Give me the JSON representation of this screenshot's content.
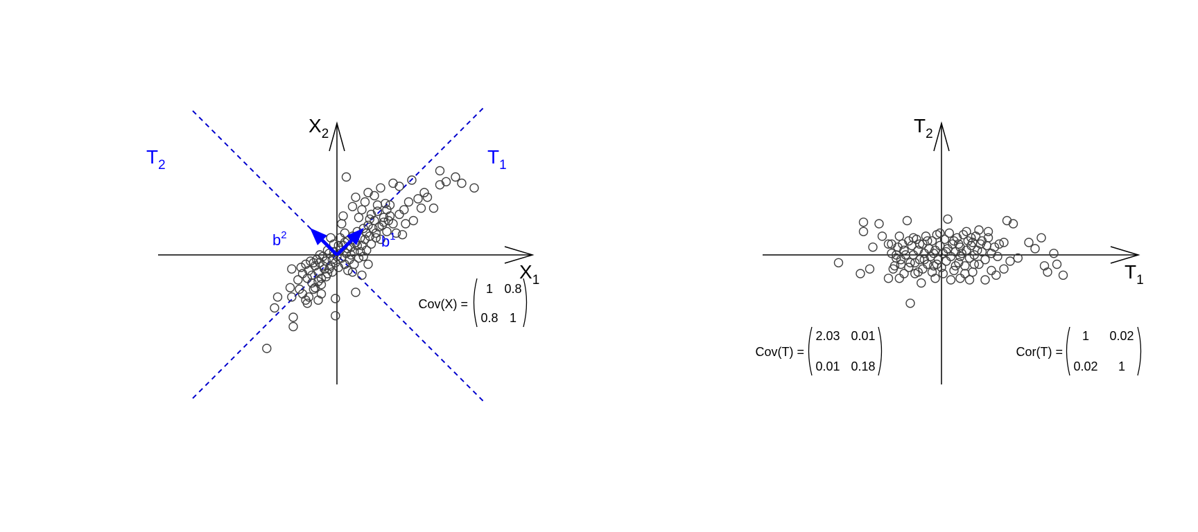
{
  "colors": {
    "axis": "#000000",
    "points": "#404040",
    "loading_lines": "#0000cc",
    "loading_arrows": "#0000ff",
    "background": "#ffffff"
  },
  "chart_data": [
    {
      "type": "scatter",
      "panel": "left",
      "xlabel": "X",
      "xlabel_sub": "1",
      "ylabel": "X",
      "ylabel_sub": "2",
      "xlim": [
        -4.2,
        4.7
      ],
      "ylim": [
        -3.6,
        3.4
      ],
      "grid": false,
      "lines": [
        {
          "name": "T",
          "sub": "1",
          "slope": 1,
          "style": "dashed"
        },
        {
          "name": "T",
          "sub": "2",
          "slope": -1,
          "style": "dashed"
        }
      ],
      "arrows": [
        {
          "name": "b",
          "sup": "1",
          "to": [
            0.707,
            0.707
          ]
        },
        {
          "name": "b",
          "sup": "2",
          "to": [
            -0.707,
            0.707
          ]
        }
      ],
      "matrix": {
        "label": "Cov(X) =",
        "rows": [
          [
            "1",
            "0.8"
          ],
          [
            "0.8",
            "1"
          ]
        ]
      },
      "points": [
        [
          -2.25,
          -3.0
        ],
        [
          -2.0,
          -1.7
        ],
        [
          -1.9,
          -1.35
        ],
        [
          -1.5,
          -1.05
        ],
        [
          -1.45,
          -1.35
        ],
        [
          -1.4,
          -2.0
        ],
        [
          -1.4,
          -2.3
        ],
        [
          -1.2,
          -1.1
        ],
        [
          -1.1,
          -1.25
        ],
        [
          -1.0,
          -1.45
        ],
        [
          -0.95,
          -1.55
        ],
        [
          -0.9,
          -1.35
        ],
        [
          -0.8,
          -0.9
        ],
        [
          -0.75,
          -1.1
        ],
        [
          -0.6,
          -1.45
        ],
        [
          -0.5,
          -1.25
        ],
        [
          -1.45,
          -0.45
        ],
        [
          -1.1,
          -0.6
        ],
        [
          -1.0,
          -0.3
        ],
        [
          -0.9,
          -0.5
        ],
        [
          -0.85,
          -0.2
        ],
        [
          -0.8,
          -0.65
        ],
        [
          -0.7,
          -0.35
        ],
        [
          -0.65,
          -0.15
        ],
        [
          -0.6,
          -0.55
        ],
        [
          -0.55,
          -0.25
        ],
        [
          -0.5,
          -0.75
        ],
        [
          -0.45,
          -0.05
        ],
        [
          -0.4,
          -0.45
        ],
        [
          -0.35,
          -0.2
        ],
        [
          -0.3,
          -0.6
        ],
        [
          -0.25,
          0.05
        ],
        [
          -0.2,
          -0.35
        ],
        [
          -0.15,
          -0.15
        ],
        [
          -0.1,
          0.1
        ],
        [
          -0.05,
          -0.25
        ],
        [
          0.0,
          -0.05
        ],
        [
          0.05,
          -0.4
        ],
        [
          0.1,
          0.15
        ],
        [
          0.15,
          -0.1
        ],
        [
          0.2,
          0.3
        ],
        [
          0.25,
          -0.3
        ],
        [
          0.3,
          0.05
        ],
        [
          0.35,
          0.45
        ],
        [
          0.4,
          -0.15
        ],
        [
          0.45,
          0.25
        ],
        [
          0.5,
          0.6
        ],
        [
          0.55,
          0.1
        ],
        [
          0.6,
          0.4
        ],
        [
          0.65,
          0.75
        ],
        [
          0.7,
          -0.1
        ],
        [
          0.75,
          0.55
        ],
        [
          0.8,
          0.3
        ],
        [
          0.85,
          0.85
        ],
        [
          0.9,
          0.5
        ],
        [
          0.95,
          0.15
        ],
        [
          1.0,
          0.95
        ],
        [
          1.05,
          0.6
        ],
        [
          1.1,
          0.35
        ],
        [
          1.2,
          1.1
        ],
        [
          1.25,
          0.7
        ],
        [
          1.3,
          1.4
        ],
        [
          1.35,
          0.9
        ],
        [
          1.4,
          0.5
        ],
        [
          1.5,
          1.2
        ],
        [
          1.6,
          0.75
        ],
        [
          1.7,
          1.6
        ],
        [
          1.8,
          1.0
        ],
        [
          1.9,
          0.7
        ],
        [
          2.0,
          1.3
        ],
        [
          2.1,
          0.65
        ],
        [
          2.2,
          1.0
        ],
        [
          2.3,
          1.7
        ],
        [
          2.6,
          1.8
        ],
        [
          2.7,
          1.5
        ],
        [
          2.8,
          2.0
        ],
        [
          2.9,
          1.85
        ],
        [
          3.1,
          1.5
        ],
        [
          3.3,
          2.25
        ],
        [
          3.5,
          2.35
        ],
        [
          3.8,
          2.5
        ],
        [
          4.0,
          2.3
        ],
        [
          4.4,
          2.15
        ],
        [
          3.3,
          2.7
        ],
        [
          0.3,
          2.5
        ],
        [
          0.5,
          1.55
        ],
        [
          0.6,
          1.85
        ],
        [
          0.7,
          1.2
        ],
        [
          0.8,
          1.45
        ],
        [
          0.9,
          1.7
        ],
        [
          1.0,
          2.0
        ],
        [
          1.1,
          1.3
        ],
        [
          1.2,
          1.9
        ],
        [
          1.3,
          1.6
        ],
        [
          1.4,
          2.15
        ],
        [
          1.5,
          1.05
        ],
        [
          1.6,
          1.45
        ],
        [
          1.7,
          1.25
        ],
        [
          0.15,
          1.0
        ],
        [
          0.2,
          1.25
        ],
        [
          0.25,
          0.7
        ],
        [
          0.1,
          0.55
        ],
        [
          -0.1,
          0.35
        ],
        [
          -0.2,
          0.55
        ],
        [
          -0.3,
          0.15
        ],
        [
          0.5,
          -0.55
        ],
        [
          0.8,
          -0.65
        ],
        [
          1.0,
          -0.3
        ],
        [
          0.6,
          -1.2
        ],
        [
          -0.05,
          -1.4
        ],
        [
          -0.05,
          -1.95
        ],
        [
          2.0,
          2.2
        ],
        [
          2.4,
          2.4
        ],
        [
          1.8,
          2.3
        ],
        [
          -0.5,
          -0.95
        ],
        [
          -0.7,
          -1.05
        ],
        [
          -0.6,
          -0.85
        ],
        [
          -0.35,
          -0.7
        ],
        [
          -0.25,
          -0.45
        ],
        [
          -0.15,
          -0.55
        ],
        [
          0.35,
          -0.5
        ],
        [
          0.45,
          0.0
        ],
        [
          0.55,
          -0.3
        ],
        [
          0.75,
          0.1
        ],
        [
          0.95,
          0.7
        ],
        [
          1.15,
          0.85
        ],
        [
          1.45,
          0.95
        ],
        [
          1.65,
          1.1
        ],
        [
          2.15,
          1.45
        ],
        [
          2.45,
          1.1
        ],
        [
          -1.25,
          -0.8
        ],
        [
          -1.15,
          -0.4
        ],
        [
          -0.95,
          -0.75
        ],
        [
          -0.75,
          -0.25
        ],
        [
          -0.55,
          0.0
        ],
        [
          -0.45,
          -0.35
        ],
        [
          0.05,
          0.3
        ],
        [
          0.25,
          0.4
        ],
        [
          0.35,
          0.2
        ],
        [
          0.65,
          0.3
        ],
        [
          0.85,
          -0.05
        ],
        [
          1.05,
          1.15
        ],
        [
          1.25,
          0.55
        ],
        [
          1.55,
          1.65
        ]
      ]
    },
    {
      "type": "scatter",
      "panel": "right",
      "xlabel": "T",
      "xlabel_sub": "1",
      "ylabel": "T",
      "ylabel_sub": "2",
      "xlim": [
        -4.2,
        4.7
      ],
      "ylim": [
        -3.6,
        3.4
      ],
      "grid": false,
      "matrices": [
        {
          "label": "Cov(T) =",
          "rows": [
            [
              "2.03",
              "0.01"
            ],
            [
              "0.01",
              "0.18"
            ]
          ]
        },
        {
          "label": "Cor(T) =",
          "rows": [
            [
              "1",
              "0.02"
            ],
            [
              "0.02",
              "1"
            ]
          ]
        }
      ],
      "points": [
        [
          -3.3,
          -0.25
        ],
        [
          -2.6,
          -0.6
        ],
        [
          -2.5,
          0.75
        ],
        [
          -2.5,
          1.05
        ],
        [
          -2.3,
          -0.45
        ],
        [
          -2.0,
          1.0
        ],
        [
          -1.7,
          0.35
        ],
        [
          -1.6,
          0.35
        ],
        [
          -1.5,
          -0.35
        ],
        [
          -1.45,
          -0.1
        ],
        [
          -1.45,
          0.0
        ],
        [
          -1.4,
          0.25
        ],
        [
          -1.35,
          0.6
        ],
        [
          -1.3,
          -0.15
        ],
        [
          -1.25,
          0.35
        ],
        [
          -1.2,
          -0.6
        ],
        [
          -1.15,
          0.0
        ],
        [
          -1.1,
          1.1
        ],
        [
          -1.05,
          -0.4
        ],
        [
          -1.0,
          -1.55
        ],
        [
          -0.95,
          0.3
        ],
        [
          -0.9,
          0.0
        ],
        [
          -0.85,
          -0.25
        ],
        [
          -0.8,
          0.5
        ],
        [
          -0.75,
          0.15
        ],
        [
          -0.7,
          -0.15
        ],
        [
          -0.65,
          -0.9
        ],
        [
          -0.6,
          0.35
        ],
        [
          -0.55,
          0.05
        ],
        [
          -0.5,
          0.6
        ],
        [
          -0.45,
          -0.3
        ],
        [
          -0.4,
          0.2
        ],
        [
          -0.35,
          -0.05
        ],
        [
          -0.3,
          0.45
        ],
        [
          -0.25,
          -0.35
        ],
        [
          -0.2,
          0.15
        ],
        [
          -0.15,
          0.65
        ],
        [
          -0.1,
          -0.15
        ],
        [
          -0.05,
          0.3
        ],
        [
          0.0,
          -0.4
        ],
        [
          0.05,
          0.05
        ],
        [
          0.1,
          0.5
        ],
        [
          0.15,
          -0.2
        ],
        [
          0.2,
          0.2
        ],
        [
          0.25,
          0.7
        ],
        [
          0.3,
          -0.05
        ],
        [
          0.35,
          0.35
        ],
        [
          0.4,
          -0.5
        ],
        [
          0.45,
          0.1
        ],
        [
          0.5,
          0.55
        ],
        [
          0.55,
          -0.25
        ],
        [
          0.6,
          0.25
        ],
        [
          0.65,
          0.05
        ],
        [
          0.7,
          0.65
        ],
        [
          0.75,
          -0.35
        ],
        [
          0.8,
          0.15
        ],
        [
          0.85,
          0.45
        ],
        [
          0.9,
          -0.1
        ],
        [
          0.95,
          0.3
        ],
        [
          1.0,
          -0.55
        ],
        [
          1.05,
          0.0
        ],
        [
          1.1,
          0.6
        ],
        [
          1.2,
          -0.3
        ],
        [
          1.25,
          0.35
        ],
        [
          1.3,
          0.1
        ],
        [
          1.4,
          -0.15
        ],
        [
          1.5,
          0.55
        ],
        [
          1.6,
          -0.5
        ],
        [
          1.7,
          0.25
        ],
        [
          1.8,
          -0.05
        ],
        [
          2.0,
          0.4
        ],
        [
          2.1,
          1.1
        ],
        [
          2.3,
          1.0
        ],
        [
          2.8,
          0.4
        ],
        [
          3.0,
          0.2
        ],
        [
          3.2,
          0.55
        ],
        [
          3.3,
          -0.35
        ],
        [
          3.4,
          -0.55
        ],
        [
          3.6,
          0.05
        ],
        [
          3.7,
          -0.3
        ],
        [
          3.9,
          -0.65
        ],
        [
          -0.2,
          -0.75
        ],
        [
          0.3,
          -0.8
        ],
        [
          0.6,
          -0.75
        ],
        [
          0.9,
          -0.8
        ],
        [
          1.4,
          -0.8
        ],
        [
          1.75,
          -0.65
        ],
        [
          1.5,
          0.75
        ],
        [
          0.2,
          1.15
        ],
        [
          1.2,
          0.8
        ],
        [
          0.8,
          0.75
        ],
        [
          -2.2,
          0.25
        ],
        [
          -1.9,
          0.6
        ],
        [
          -1.7,
          -0.75
        ],
        [
          -0.05,
          0.7
        ],
        [
          -0.6,
          -0.45
        ],
        [
          -0.3,
          -0.55
        ],
        [
          2.0,
          -0.45
        ],
        [
          2.2,
          -0.2
        ],
        [
          1.0,
          0.4
        ],
        [
          0.4,
          0.45
        ],
        [
          -0.9,
          0.55
        ],
        [
          -1.2,
          0.15
        ],
        [
          -1.0,
          -0.25
        ],
        [
          -0.7,
          0.35
        ],
        [
          0.15,
          0.1
        ],
        [
          0.6,
          -0.05
        ],
        [
          1.3,
          0.45
        ],
        [
          1.6,
          0.05
        ],
        [
          -0.45,
          0.45
        ],
        [
          -1.55,
          -0.45
        ],
        [
          -1.35,
          -0.75
        ],
        [
          -0.75,
          -0.55
        ],
        [
          0.05,
          -0.6
        ],
        [
          0.75,
          -0.6
        ],
        [
          1.05,
          -0.3
        ],
        [
          -0.25,
          0.05
        ],
        [
          -0.55,
          -0.15
        ],
        [
          0.45,
          -0.35
        ],
        [
          1.15,
          0.15
        ],
        [
          1.45,
          0.3
        ],
        [
          0.95,
          0.55
        ],
        [
          -1.05,
          0.45
        ],
        [
          -1.3,
          -0.3
        ],
        [
          0.55,
          0.35
        ],
        [
          1.85,
          0.35
        ],
        [
          -0.85,
          -0.6
        ],
        [
          -1.6,
          0.05
        ],
        [
          2.45,
          -0.1
        ],
        [
          -0.15,
          -0.3
        ]
      ]
    }
  ]
}
